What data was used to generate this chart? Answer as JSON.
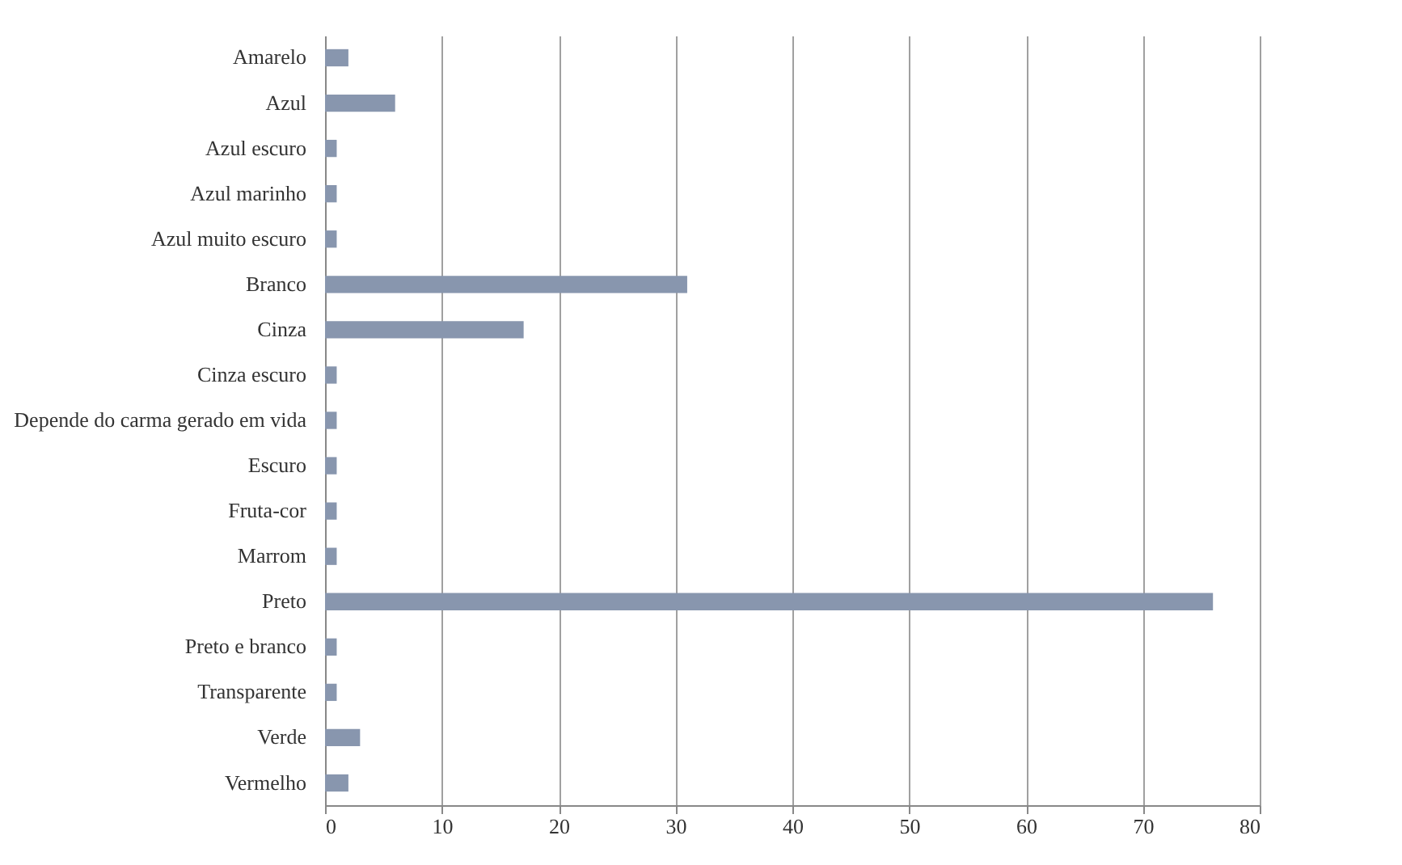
{
  "chart_data": {
    "type": "bar",
    "orientation": "horizontal",
    "categories": [
      "Amarelo",
      "Azul",
      "Azul escuro",
      "Azul marinho",
      "Azul muito escuro",
      "Branco",
      "Cinza",
      "Cinza escuro",
      "Depende do carma gerado em vida",
      "Escuro",
      "Fruta-cor",
      "Marrom",
      "Preto",
      "Preto e branco",
      "Transparente",
      "Verde",
      "Vermelho"
    ],
    "values": [
      2,
      6,
      1,
      1,
      1,
      31,
      17,
      1,
      1,
      1,
      1,
      1,
      76,
      1,
      1,
      3,
      2
    ],
    "color": "#8896ae",
    "xlim": [
      0,
      80
    ],
    "xticks": [
      0,
      10,
      20,
      30,
      40,
      50,
      60,
      70,
      80
    ],
    "grid": "x"
  }
}
